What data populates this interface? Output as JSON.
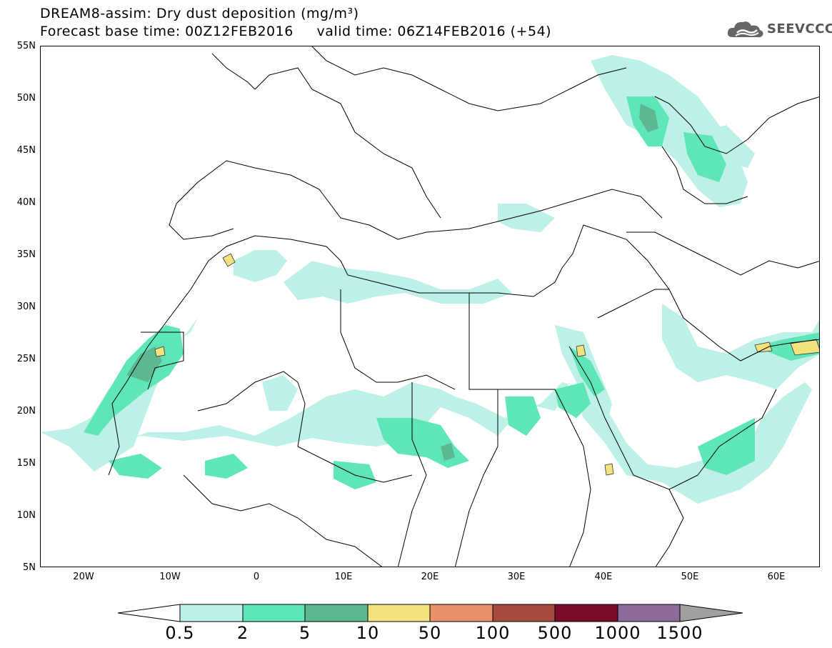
{
  "title": {
    "line1": "DREAM8-assim: Dry dust deposition (mg/m³)",
    "line2": "Forecast base time: 00Z12FEB2016     valid time: 06Z14FEB2016 (+54)"
  },
  "logo": {
    "text": "SEEVCCC",
    "icon": "cloud-icon"
  },
  "map": {
    "lat_labels": [
      "55N",
      "50N",
      "45N",
      "40N",
      "35N",
      "30N",
      "25N",
      "20N",
      "15N",
      "10N",
      "5N"
    ],
    "lon_labels": [
      "20W",
      "10W",
      "0",
      "10E",
      "20E",
      "30E",
      "40E",
      "50E",
      "60E"
    ],
    "colors": {
      "c05": "#bdf0e6",
      "c2": "#5ee6b8",
      "c5": "#5db892",
      "c10": "#f3e37e",
      "c50": "#ea8f6c",
      "c100": "#a64a3d",
      "c500": "#7c0d2a",
      "c1000": "#8c6a9c",
      "c1500": "#a0a0a0",
      "border": "#000000"
    }
  },
  "colorbar": {
    "labels": [
      "0.5",
      "2",
      "5",
      "10",
      "50",
      "100",
      "500",
      "1000",
      "1500"
    ]
  }
}
